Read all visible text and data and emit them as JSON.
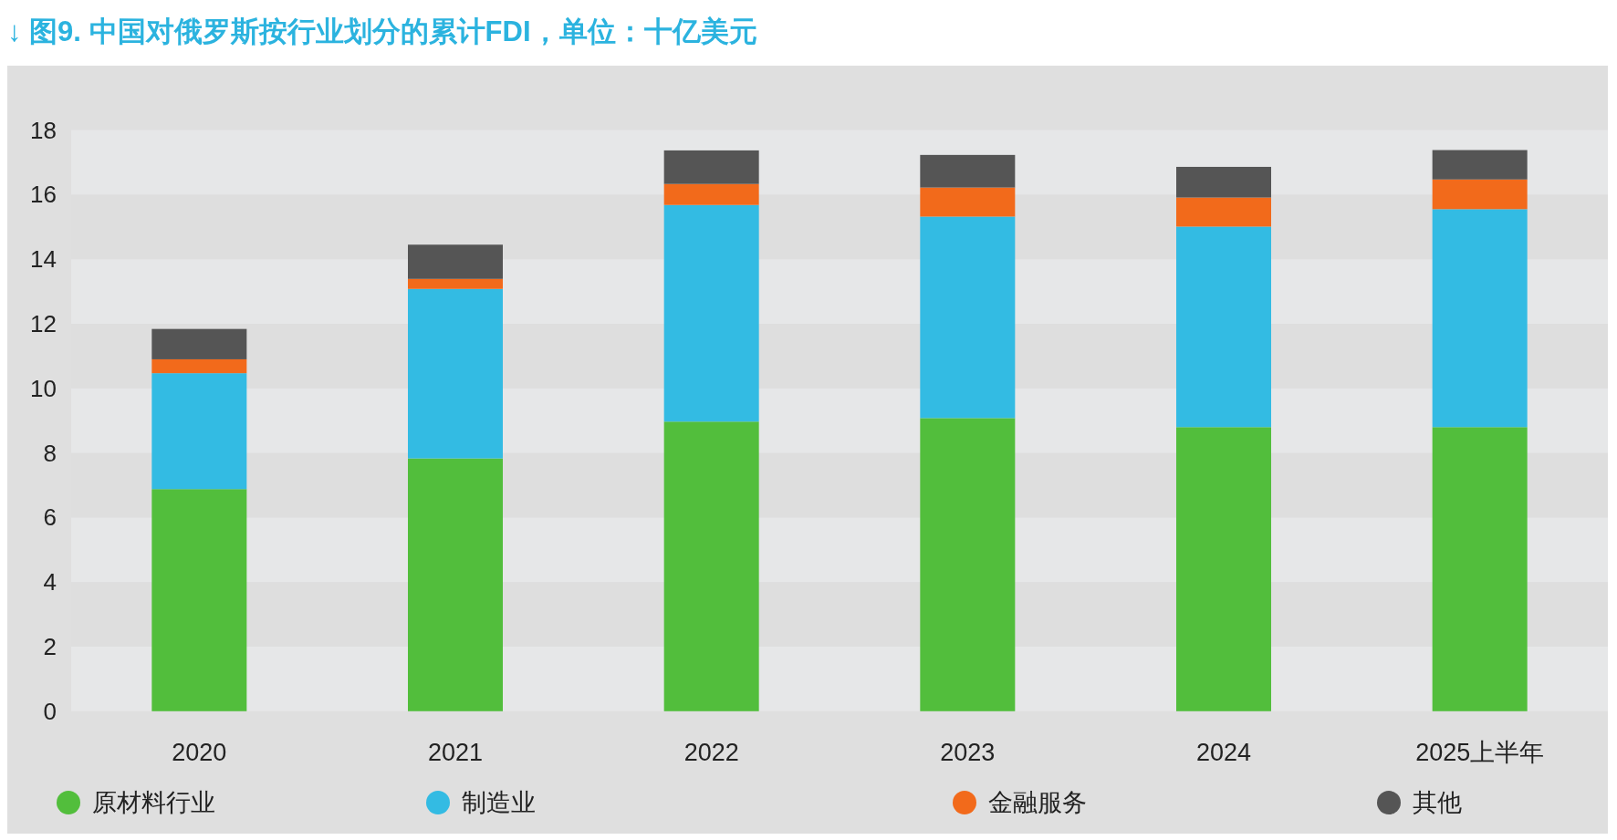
{
  "chart_data": {
    "type": "bar",
    "stacked": true,
    "title": "↓ 图9. 中国对俄罗斯按行业划分的累计FDI，单位：十亿美元",
    "categories": [
      "2020",
      "2021",
      "2022",
      "2023",
      "2024",
      "2025上半年"
    ],
    "series": [
      {
        "name": "原材料行业",
        "color": "#52be3c",
        "values": [
          6.88,
          7.83,
          8.97,
          9.08,
          8.8,
          8.8
        ]
      },
      {
        "name": "制造业",
        "color": "#33bbe3",
        "values": [
          3.59,
          5.25,
          6.71,
          6.24,
          6.21,
          6.75
        ]
      },
      {
        "name": "金融服务",
        "color": "#f26a1b",
        "values": [
          0.43,
          0.31,
          0.65,
          0.9,
          0.9,
          0.92
        ]
      },
      {
        "name": "其他",
        "color": "#555555",
        "values": [
          0.94,
          1.06,
          1.04,
          1.01,
          0.95,
          0.91
        ]
      }
    ],
    "ylim": [
      0,
      18
    ],
    "yticks": [
      0,
      2,
      4,
      6,
      8,
      10,
      12,
      14,
      16,
      18
    ],
    "legend": "bottom"
  }
}
